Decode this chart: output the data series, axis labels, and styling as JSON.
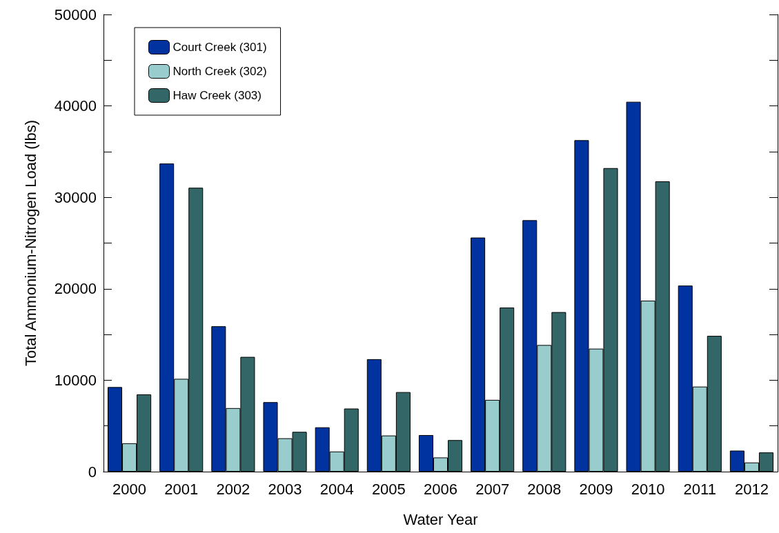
{
  "chart_data": {
    "type": "bar",
    "xlabel": "Water Year",
    "ylabel": "Total Ammonium-Nitrogen Load (lbs)",
    "categories": [
      "2000",
      "2001",
      "2002",
      "2003",
      "2004",
      "2005",
      "2006",
      "2007",
      "2008",
      "2009",
      "2010",
      "2011",
      "2012"
    ],
    "series": [
      {
        "name": "Court Creek (301)",
        "color": "#0033a0",
        "values": [
          9250,
          33700,
          15900,
          7600,
          4850,
          12300,
          4000,
          25600,
          27500,
          36250,
          40450,
          20350,
          2300
        ]
      },
      {
        "name": "North Creek (302)",
        "color": "#99cccc",
        "values": [
          3100,
          10150,
          6950,
          3650,
          2200,
          3950,
          1550,
          7850,
          13850,
          13450,
          18700,
          9300,
          1000
        ]
      },
      {
        "name": "Haw Creek (303)",
        "color": "#336666",
        "values": [
          8450,
          31050,
          12550,
          4350,
          6900,
          8700,
          3450,
          17950,
          17450,
          33200,
          31750,
          14850,
          2100
        ]
      }
    ],
    "ylim": [
      0,
      50000
    ],
    "yticks": [
      0,
      {
        "value": 5000,
        "label": null
      },
      10000,
      {
        "value": 15000,
        "label": null
      },
      20000,
      {
        "value": 25000,
        "label": null
      },
      30000,
      {
        "value": 35000,
        "label": null
      },
      40000,
      {
        "value": 45000,
        "label": null
      },
      50000
    ],
    "legend": "top left",
    "grid": false
  }
}
